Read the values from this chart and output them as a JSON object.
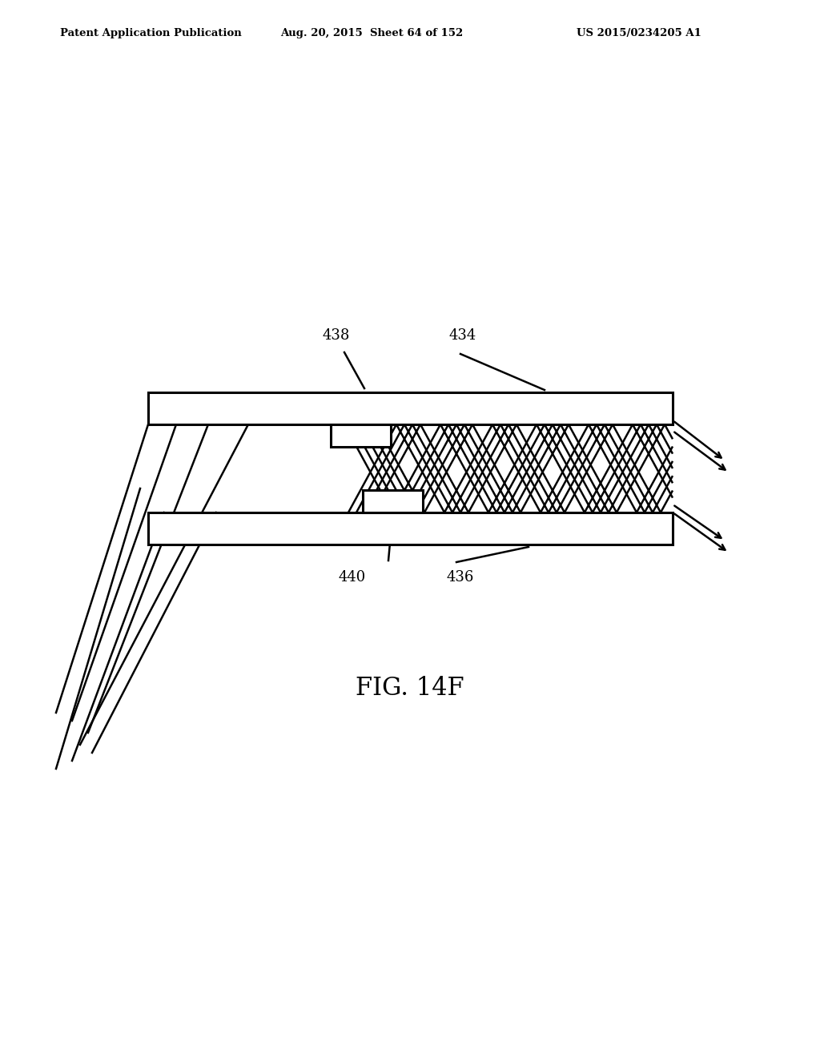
{
  "background_color": "#ffffff",
  "header_text": "Patent Application Publication",
  "header_date": "Aug. 20, 2015  Sheet 64 of 152",
  "header_patent": "US 2015/0234205 A1",
  "fig_label": "FIG. 14F",
  "label_438": "438",
  "label_434": "434",
  "label_440": "440",
  "label_436": "436",
  "line_color": "#000000",
  "line_width": 1.8,
  "slab_lw": 2.2
}
